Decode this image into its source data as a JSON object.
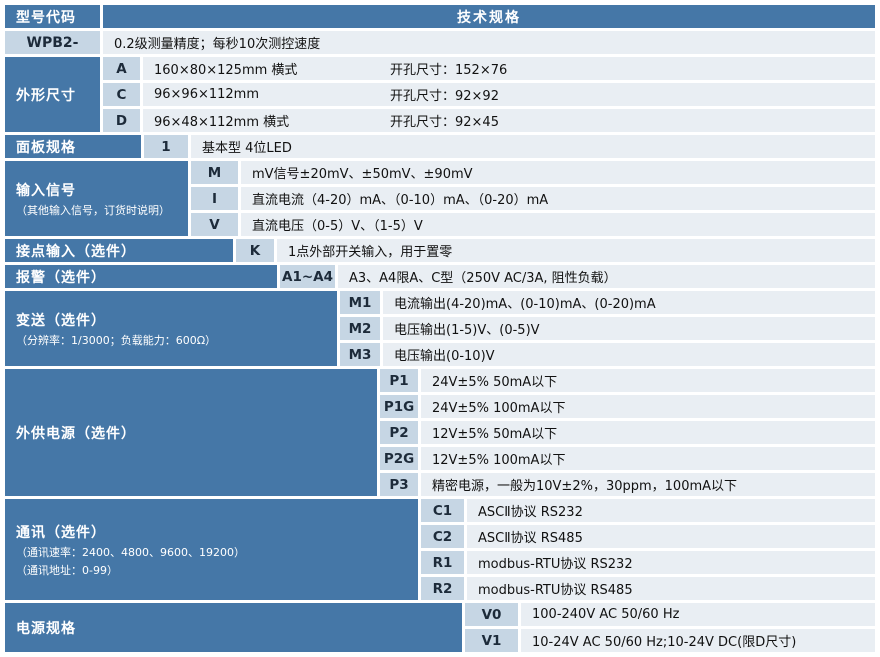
{
  "colors": {
    "label_blue": "#4577a7",
    "code_blue": "#c6d6e4",
    "spec_gray": "#e9eef3"
  },
  "header": {
    "model_code": "型号代码",
    "tech_spec": "技术规格"
  },
  "base": {
    "code": "WPB2-",
    "desc": "0.2级测量精度；每秒10次测控速度"
  },
  "dimensions": {
    "label": "外形尺寸",
    "rows": [
      {
        "code": "A",
        "size": "160×80×125mm 横式",
        "cutout": "开孔尺寸：152×76"
      },
      {
        "code": "C",
        "size": "96×96×112mm",
        "cutout": "开孔尺寸：92×92"
      },
      {
        "code": "D",
        "size": "96×48×112mm 横式",
        "cutout": "开孔尺寸：92×45"
      }
    ]
  },
  "panel": {
    "label": "面板规格",
    "rows": [
      {
        "code": "1",
        "desc": "基本型 4位LED"
      }
    ]
  },
  "input_signal": {
    "label": "输入信号",
    "sublabel": "（其他输入信号，订货时说明）",
    "rows": [
      {
        "code": "M",
        "desc": "mV信号±20mV、±50mV、±90mV"
      },
      {
        "code": "I",
        "desc": "直流电流（4-20）mA、（0-10）mA、（0-20）mA"
      },
      {
        "code": "V",
        "desc": "直流电压（0-5）V、（1-5）V"
      }
    ]
  },
  "contact_input": {
    "label": "接点输入（选件）",
    "rows": [
      {
        "code": "K",
        "desc": "1点外部开关输入，用于置零"
      }
    ]
  },
  "alarm": {
    "label": "报警（选件）",
    "rows": [
      {
        "code": "A1~A4",
        "desc": "A3、A4限A、C型（250V AC/3A, 阻性负载）"
      }
    ]
  },
  "transmit": {
    "label": "变送（选件）",
    "sublabel": "（分辨率：1/3000；负载能力：600Ω）",
    "rows": [
      {
        "code": "M1",
        "desc": "电流输出(4-20)mA、(0-10)mA、(0-20)mA"
      },
      {
        "code": "M2",
        "desc": "电压输出(1-5)V、(0-5)V"
      },
      {
        "code": "M3",
        "desc": "电压输出(0-10)V"
      }
    ]
  },
  "ext_power": {
    "label": "外供电源（选件）",
    "rows": [
      {
        "code": "P1",
        "desc": "24V±5% 50mA以下"
      },
      {
        "code": "P1G",
        "desc": "24V±5% 100mA以下"
      },
      {
        "code": "P2",
        "desc": "12V±5% 50mA以下"
      },
      {
        "code": "P2G",
        "desc": "12V±5% 100mA以下"
      },
      {
        "code": "P3",
        "desc": "精密电源，一般为10V±2%，30ppm，100mA以下"
      }
    ]
  },
  "comm": {
    "label": "通讯（选件）",
    "sublabel1": "（通讯速率：2400、4800、9600、19200）",
    "sublabel2": "（通讯地址：0-99）",
    "rows": [
      {
        "code": "C1",
        "desc": "ASCⅡ协议 RS232"
      },
      {
        "code": "C2",
        "desc": "ASCⅡ协议 RS485"
      },
      {
        "code": "R1",
        "desc": "modbus-RTU协议 RS232"
      },
      {
        "code": "R2",
        "desc": "modbus-RTU协议 RS485"
      }
    ]
  },
  "power_spec": {
    "label": "电源规格",
    "rows": [
      {
        "code": "V0",
        "desc": "100-240V AC 50/60 Hz"
      },
      {
        "code": "V1",
        "desc": "10-24V AC 50/60 Hz;10-24V DC(限D尺寸)"
      }
    ]
  }
}
